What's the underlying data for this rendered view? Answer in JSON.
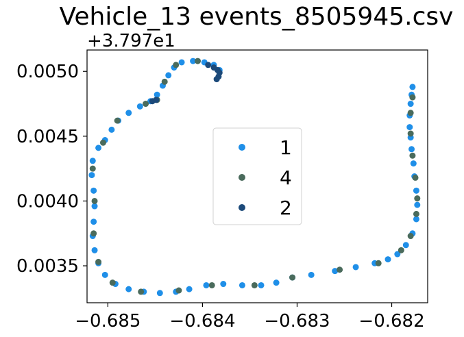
{
  "chart_data": {
    "type": "scatter",
    "title": "Vehicle_13 events_8505945.csv",
    "xlabel": "",
    "ylabel": "",
    "y_offset_label": "+3.797e1",
    "y_offset": 37.97,
    "xlim": [
      -0.68522,
      -0.68162
    ],
    "ylim": [
      0.003215,
      0.005165
    ],
    "x_ticks": [
      -0.685,
      -0.684,
      -0.683,
      -0.682
    ],
    "x_tick_labels": [
      "−0.685",
      "−0.684",
      "−0.683",
      "−0.682"
    ],
    "y_ticks": [
      0.0035,
      0.004,
      0.0045,
      0.005
    ],
    "y_tick_labels": [
      "0.0035",
      "0.0040",
      "0.0045",
      "0.0050"
    ],
    "grid": false,
    "legend_position": "center",
    "series": [
      {
        "name": "1",
        "color": "#1f8fe8",
        "points": [
          [
            -0.68178,
            0.00488
          ],
          [
            -0.68179,
            0.00482
          ],
          [
            -0.6818,
            0.00475
          ],
          [
            -0.68181,
            0.00466
          ],
          [
            -0.68181,
            0.00457
          ],
          [
            -0.6818,
            0.00449
          ],
          [
            -0.68179,
            0.0044
          ],
          [
            -0.68177,
            0.00429
          ],
          [
            -0.68176,
            0.00419
          ],
          [
            -0.68174,
            0.00408
          ],
          [
            -0.68173,
            0.00397
          ],
          [
            -0.68174,
            0.00386
          ],
          [
            -0.68178,
            0.00375
          ],
          [
            -0.68185,
            0.00366
          ],
          [
            -0.68194,
            0.00359
          ],
          [
            -0.68204,
            0.00355
          ],
          [
            -0.68218,
            0.00352
          ],
          [
            -0.68238,
            0.00349
          ],
          [
            -0.6826,
            0.00346
          ],
          [
            -0.68285,
            0.00343
          ],
          [
            -0.68305,
            0.00341
          ],
          [
            -0.68322,
            0.00337
          ],
          [
            -0.68338,
            0.00335
          ],
          [
            -0.68358,
            0.00335
          ],
          [
            -0.68378,
            0.00336
          ],
          [
            -0.68396,
            0.00335
          ],
          [
            -0.68414,
            0.00332
          ],
          [
            -0.68428,
            0.0033
          ],
          [
            -0.68445,
            0.00329
          ],
          [
            -0.68462,
            0.0033
          ],
          [
            -0.68478,
            0.00332
          ],
          [
            -0.68492,
            0.00336
          ],
          [
            -0.68503,
            0.00343
          ],
          [
            -0.6851,
            0.00352
          ],
          [
            -0.68514,
            0.00362
          ],
          [
            -0.68516,
            0.00373
          ],
          [
            -0.68515,
            0.00384
          ],
          [
            -0.68514,
            0.00396
          ],
          [
            -0.68515,
            0.00408
          ],
          [
            -0.68517,
            0.0042
          ],
          [
            -0.68516,
            0.00431
          ],
          [
            -0.6851,
            0.00441
          ],
          [
            -0.68503,
            0.00447
          ],
          [
            -0.68496,
            0.00455
          ],
          [
            -0.68489,
            0.00462
          ],
          [
            -0.68478,
            0.00468
          ],
          [
            -0.68466,
            0.00473
          ],
          [
            -0.68455,
            0.00477
          ],
          [
            -0.68448,
            0.00482
          ],
          [
            -0.68442,
            0.00489
          ],
          [
            -0.68436,
            0.00497
          ],
          [
            -0.6843,
            0.00503
          ],
          [
            -0.68422,
            0.00507
          ],
          [
            -0.6841,
            0.00508
          ],
          [
            -0.68398,
            0.00507
          ],
          [
            -0.68388,
            0.00505
          ],
          [
            -0.68382,
            0.00501
          ]
        ]
      },
      {
        "name": "4",
        "color": "#4a6b5c",
        "points": [
          [
            -0.68178,
            0.0048
          ],
          [
            -0.6818,
            0.00468
          ],
          [
            -0.6818,
            0.00452
          ],
          [
            -0.68178,
            0.00435
          ],
          [
            -0.68175,
            0.00418
          ],
          [
            -0.68173,
            0.00402
          ],
          [
            -0.68174,
            0.0039
          ],
          [
            -0.6818,
            0.00373
          ],
          [
            -0.6819,
            0.00362
          ],
          [
            -0.68214,
            0.00352
          ],
          [
            -0.68255,
            0.00347
          ],
          [
            -0.68305,
            0.00341
          ],
          [
            -0.68345,
            0.00335
          ],
          [
            -0.6839,
            0.00335
          ],
          [
            -0.68425,
            0.00331
          ],
          [
            -0.68465,
            0.0033
          ],
          [
            -0.68495,
            0.00337
          ],
          [
            -0.6851,
            0.00353
          ],
          [
            -0.68515,
            0.00375
          ],
          [
            -0.68514,
            0.004
          ],
          [
            -0.68516,
            0.00425
          ],
          [
            -0.68505,
            0.00445
          ],
          [
            -0.6849,
            0.00462
          ],
          [
            -0.6846,
            0.00475
          ],
          [
            -0.68448,
            0.00478
          ],
          [
            -0.6844,
            0.00492
          ],
          [
            -0.68428,
            0.00505
          ],
          [
            -0.68405,
            0.00508
          ]
        ]
      },
      {
        "name": "2",
        "color": "#1c4a7a",
        "points": [
          [
            -0.68453,
            0.00477
          ],
          [
            -0.68449,
            0.00478
          ],
          [
            -0.68394,
            0.00505
          ],
          [
            -0.68388,
            0.00503
          ],
          [
            -0.68384,
            0.00501
          ],
          [
            -0.68382,
            0.00499
          ],
          [
            -0.68383,
            0.00496
          ],
          [
            -0.68385,
            0.00494
          ]
        ]
      }
    ]
  }
}
